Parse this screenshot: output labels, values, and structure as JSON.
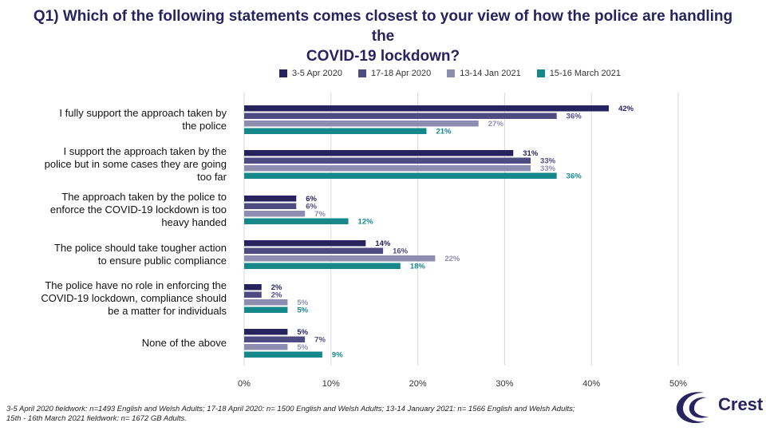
{
  "title_line1": "Q1) Which of the following statements comes closest to your view of how the police are handling the",
  "title_line2": "COVID-19 lockdown?",
  "footnote_line1": "3-5 April 2020 fieldwork: n=1493 English and Welsh Adults; 17-18 April 2020: n= 1500 English and Welsh Adults; 13-14 January 2021: n= 1566 English and Welsh Adults;",
  "footnote_line2": "15th - 16th March 2021 fieldwork: n= 1672 GB Adults.",
  "logo": {
    "text": "Crest",
    "color": "#26235e",
    "icon": "crest-swoosh-icon"
  },
  "chart_data": {
    "type": "bar",
    "orientation": "horizontal",
    "categories": [
      [
        "I fully support the approach taken by",
        "the police"
      ],
      [
        "I support the approach taken by the",
        "police but in some cases they are going",
        "too far"
      ],
      [
        "The approach taken by the police to",
        "enforce the COVID-19 lockdown is too",
        "heavy handed"
      ],
      [
        "The police should take tougher action",
        "to ensure public compliance"
      ],
      [
        "The police have no role in enforcing the",
        "COVID-19 lockdown, compliance should",
        "be a matter for individuals"
      ],
      [
        "None of the above"
      ]
    ],
    "series": [
      {
        "name": "3-5 Apr 2020",
        "color": "#26235e",
        "values": [
          42,
          31,
          6,
          14,
          2,
          5
        ]
      },
      {
        "name": "17-18 Apr 2020",
        "color": "#4e4b83",
        "values": [
          36,
          33,
          6,
          16,
          2,
          7
        ]
      },
      {
        "name": "13-14 Jan 2021",
        "color": "#8e8caf",
        "values": [
          27,
          33,
          7,
          22,
          5,
          5
        ]
      },
      {
        "name": "15-16 March 2021",
        "color": "#16888c",
        "values": [
          21,
          36,
          12,
          18,
          5,
          9
        ]
      }
    ],
    "value_suffix": "%",
    "xlim": [
      0,
      50
    ],
    "xticks": [
      "0%",
      "10%",
      "20%",
      "30%",
      "40%",
      "50%"
    ],
    "xtick_values": [
      0,
      10,
      20,
      30,
      40,
      50
    ],
    "grid": true,
    "legend_position": "top"
  }
}
